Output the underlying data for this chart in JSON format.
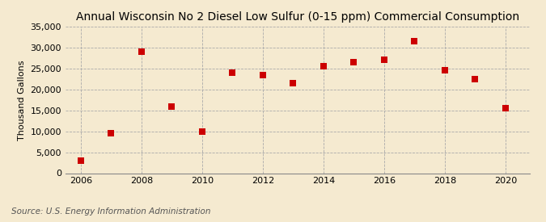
{
  "title": "Annual Wisconsin No 2 Diesel Low Sulfur (0-15 ppm) Commercial Consumption",
  "ylabel": "Thousand Gallons",
  "source": "Source: U.S. Energy Information Administration",
  "years": [
    2006,
    2007,
    2008,
    2009,
    2010,
    2011,
    2012,
    2013,
    2014,
    2015,
    2016,
    2017,
    2018,
    2019,
    2020
  ],
  "values": [
    3000,
    9500,
    29000,
    16000,
    10000,
    24000,
    23500,
    21500,
    25500,
    26500,
    27000,
    31500,
    24500,
    22500,
    15500
  ],
  "marker_color": "#cc0000",
  "marker": "s",
  "marker_size": 28,
  "background_color": "#f5ead0",
  "grid_color": "#aaaaaa",
  "ylim": [
    0,
    35000
  ],
  "yticks": [
    0,
    5000,
    10000,
    15000,
    20000,
    25000,
    30000,
    35000
  ],
  "xlim": [
    2005.5,
    2020.8
  ],
  "xticks": [
    2006,
    2008,
    2010,
    2012,
    2014,
    2016,
    2018,
    2020
  ],
  "title_fontsize": 10,
  "ylabel_fontsize": 8,
  "source_fontsize": 7.5,
  "tick_fontsize": 8
}
